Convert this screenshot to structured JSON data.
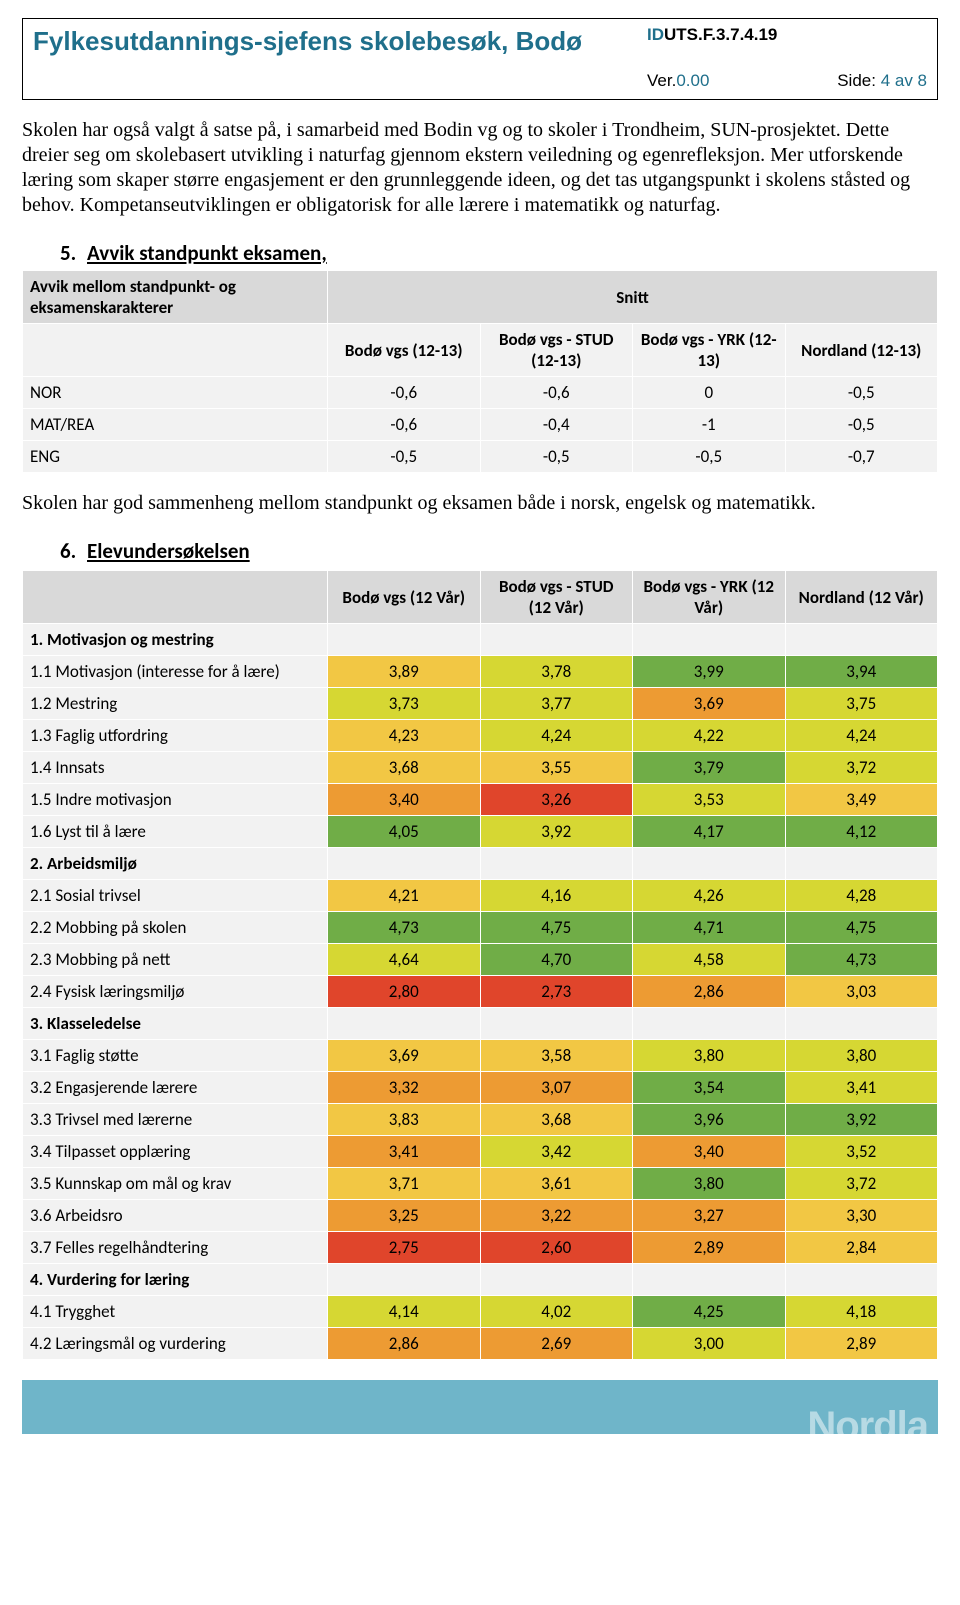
{
  "header": {
    "title": "Fylkesutdannings-sjefens skolebesøk, Bodø",
    "idPrefix": "ID",
    "id": "UTS.F.3.7.4.19",
    "verLabel": "Ver.",
    "ver": "0.00",
    "sideLabel": "Side:",
    "side": "4 av 8"
  },
  "para1": "Skolen har også valgt å satse på, i samarbeid med Bodin vg og to skoler i Trondheim, SUN-prosjektet. Dette dreier seg om skolebasert utvikling i naturfag gjennom ekstern veiledning og egenrefleksjon. Mer utforskende læring som skaper større engasjement er den grunnleggende ideen, og det tas utgangspunkt i skolens ståsted og behov. Kompetanseutviklingen er obligatorisk for alle lærere i matematikk og naturfag.",
  "section5": {
    "num": "5.",
    "title": "Avvik standpunkt eksamen,"
  },
  "table1": {
    "header_left": "Avvik mellom standpunkt- og eksamenskarakterer",
    "header_right": "Snitt",
    "cols": [
      "Bodø vgs (12-13)",
      "Bodø vgs - STUD (12-13)",
      "Bodø vgs - YRK (12-13)",
      "Nordland (12-13)"
    ],
    "rows": [
      {
        "label": "NOR",
        "vals": [
          "-0,6",
          "-0,6",
          "0",
          "-0,5"
        ]
      },
      {
        "label": "MAT/REA",
        "vals": [
          "-0,6",
          "-0,4",
          "-1",
          "-0,5"
        ]
      },
      {
        "label": "ENG",
        "vals": [
          "-0,5",
          "-0,5",
          "-0,5",
          "-0,7"
        ]
      }
    ]
  },
  "para2": "Skolen har god sammenheng mellom standpunkt og eksamen både i norsk, engelsk og matematikk.",
  "section6": {
    "num": "6.",
    "title": "Elevundersøkelsen"
  },
  "colors": {
    "green": "#70ad47",
    "ygreen": "#d6d733",
    "yellow": "#f2c744",
    "orange": "#ed9b33",
    "red": "#e0452b",
    "grey": "#f2f2f2"
  },
  "table2": {
    "cols": [
      "Bodø vgs (12 Vår)",
      "Bodø vgs - STUD (12 Vår)",
      "Bodø vgs - YRK (12 Vår)",
      "Nordland (12 Vår)"
    ],
    "sections": [
      {
        "label": "1. Motivasjon og mestring",
        "rows": [
          {
            "label": "1.1 Motivasjon (interesse for å lære)",
            "vals": [
              [
                "3,89",
                "yellow"
              ],
              [
                "3,78",
                "ygreen"
              ],
              [
                "3,99",
                "green"
              ],
              [
                "3,94",
                "green"
              ]
            ]
          },
          {
            "label": "1.2 Mestring",
            "vals": [
              [
                "3,73",
                "ygreen"
              ],
              [
                "3,77",
                "ygreen"
              ],
              [
                "3,69",
                "orange"
              ],
              [
                "3,75",
                "ygreen"
              ]
            ]
          },
          {
            "label": "1.3 Faglig utfordring",
            "vals": [
              [
                "4,23",
                "yellow"
              ],
              [
                "4,24",
                "ygreen"
              ],
              [
                "4,22",
                "ygreen"
              ],
              [
                "4,24",
                "ygreen"
              ]
            ]
          },
          {
            "label": "1.4 Innsats",
            "vals": [
              [
                "3,68",
                "yellow"
              ],
              [
                "3,55",
                "yellow"
              ],
              [
                "3,79",
                "green"
              ],
              [
                "3,72",
                "ygreen"
              ]
            ]
          },
          {
            "label": "1.5 Indre motivasjon",
            "vals": [
              [
                "3,40",
                "orange"
              ],
              [
                "3,26",
                "red"
              ],
              [
                "3,53",
                "ygreen"
              ],
              [
                "3,49",
                "yellow"
              ]
            ]
          },
          {
            "label": "1.6 Lyst til å lære",
            "vals": [
              [
                "4,05",
                "green"
              ],
              [
                "3,92",
                "ygreen"
              ],
              [
                "4,17",
                "green"
              ],
              [
                "4,12",
                "green"
              ]
            ]
          }
        ]
      },
      {
        "label": "2. Arbeidsmiljø",
        "rows": [
          {
            "label": "2.1 Sosial trivsel",
            "vals": [
              [
                "4,21",
                "yellow"
              ],
              [
                "4,16",
                "ygreen"
              ],
              [
                "4,26",
                "ygreen"
              ],
              [
                "4,28",
                "ygreen"
              ]
            ]
          },
          {
            "label": "2.2 Mobbing på skolen",
            "vals": [
              [
                "4,73",
                "green"
              ],
              [
                "4,75",
                "green"
              ],
              [
                "4,71",
                "green"
              ],
              [
                "4,75",
                "green"
              ]
            ]
          },
          {
            "label": "2.3 Mobbing på nett",
            "vals": [
              [
                "4,64",
                "ygreen"
              ],
              [
                "4,70",
                "green"
              ],
              [
                "4,58",
                "ygreen"
              ],
              [
                "4,73",
                "green"
              ]
            ]
          },
          {
            "label": "2.4 Fysisk læringsmiljø",
            "vals": [
              [
                "2,80",
                "red"
              ],
              [
                "2,73",
                "red"
              ],
              [
                "2,86",
                "orange"
              ],
              [
                "3,03",
                "yellow"
              ]
            ]
          }
        ]
      },
      {
        "label": "3. Klasseledelse",
        "rows": [
          {
            "label": "3.1 Faglig støtte",
            "vals": [
              [
                "3,69",
                "yellow"
              ],
              [
                "3,58",
                "yellow"
              ],
              [
                "3,80",
                "ygreen"
              ],
              [
                "3,80",
                "ygreen"
              ]
            ]
          },
          {
            "label": "3.2 Engasjerende lærere",
            "vals": [
              [
                "3,32",
                "orange"
              ],
              [
                "3,07",
                "orange"
              ],
              [
                "3,54",
                "green"
              ],
              [
                "3,41",
                "ygreen"
              ]
            ]
          },
          {
            "label": "3.3 Trivsel med lærerne",
            "vals": [
              [
                "3,83",
                "yellow"
              ],
              [
                "3,68",
                "yellow"
              ],
              [
                "3,96",
                "green"
              ],
              [
                "3,92",
                "green"
              ]
            ]
          },
          {
            "label": "3.4 Tilpasset opplæring",
            "vals": [
              [
                "3,41",
                "orange"
              ],
              [
                "3,42",
                "ygreen"
              ],
              [
                "3,40",
                "orange"
              ],
              [
                "3,52",
                "ygreen"
              ]
            ]
          },
          {
            "label": "3.5 Kunnskap om mål og krav",
            "vals": [
              [
                "3,71",
                "yellow"
              ],
              [
                "3,61",
                "yellow"
              ],
              [
                "3,80",
                "green"
              ],
              [
                "3,72",
                "ygreen"
              ]
            ]
          },
          {
            "label": "3.6 Arbeidsro",
            "vals": [
              [
                "3,25",
                "orange"
              ],
              [
                "3,22",
                "orange"
              ],
              [
                "3,27",
                "orange"
              ],
              [
                "3,30",
                "yellow"
              ]
            ]
          },
          {
            "label": "3.7 Felles regelhåndtering",
            "vals": [
              [
                "2,75",
                "red"
              ],
              [
                "2,60",
                "red"
              ],
              [
                "2,89",
                "orange"
              ],
              [
                "2,84",
                "yellow"
              ]
            ]
          }
        ]
      },
      {
        "label": "4. Vurdering for læring",
        "rows": [
          {
            "label": "4.1 Trygghet",
            "vals": [
              [
                "4,14",
                "ygreen"
              ],
              [
                "4,02",
                "ygreen"
              ],
              [
                "4,25",
                "green"
              ],
              [
                "4,18",
                "ygreen"
              ]
            ]
          },
          {
            "label": "4.2 Læringsmål og vurdering",
            "vals": [
              [
                "2,86",
                "orange"
              ],
              [
                "2,69",
                "orange"
              ],
              [
                "3,00",
                "ygreen"
              ],
              [
                "2,89",
                "yellow"
              ]
            ]
          }
        ]
      }
    ]
  },
  "footer": "Nordla"
}
